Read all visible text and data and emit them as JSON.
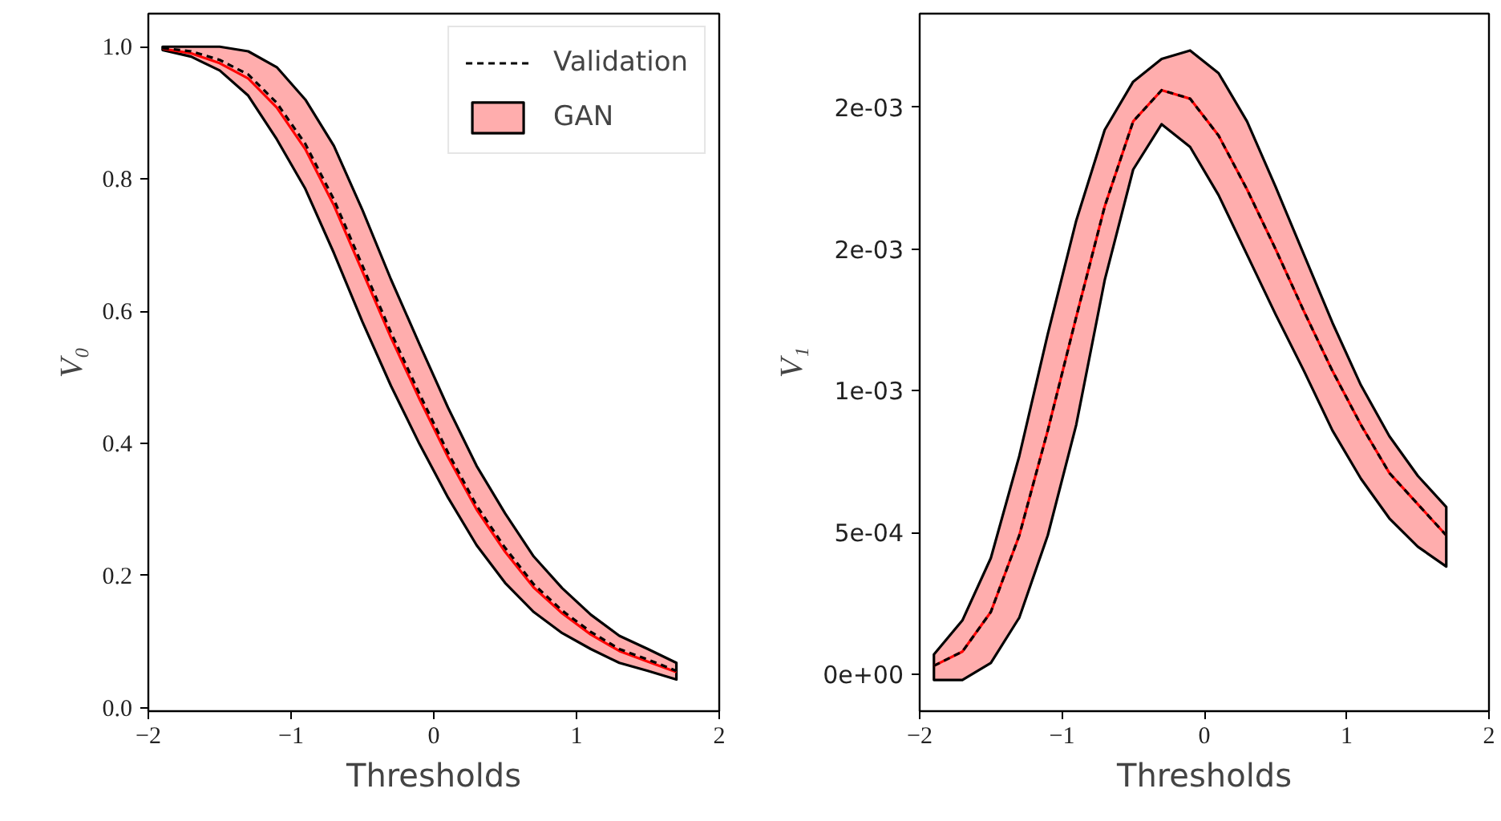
{
  "chart_data": [
    {
      "type": "line",
      "xlabel": "Thresholds",
      "ylabel": "V₀",
      "xlim": [
        -2,
        2
      ],
      "ylim": [
        -0.005,
        1.05
      ],
      "xticks": [
        -2,
        -1,
        0,
        1,
        2
      ],
      "yticks": [
        {
          "value": 0,
          "label": "0.0"
        },
        0.2,
        0.4,
        0.6,
        0.8,
        {
          "value": 1,
          "label": "1.0"
        }
      ],
      "grid": false,
      "legend": "top right",
      "x": [
        -1.9,
        -1.7,
        -1.5,
        -1.3,
        -1.1,
        -0.9,
        -0.7,
        -0.5,
        -0.3,
        -0.1,
        0.1,
        0.3,
        0.5,
        0.7,
        0.9,
        1.1,
        1.3,
        1.5,
        1.7
      ],
      "series": [
        {
          "name": "Validation",
          "color": "#000000",
          "line_style": "dashed",
          "values": [
            0.998,
            0.993,
            0.98,
            0.958,
            0.915,
            0.853,
            0.769,
            0.669,
            0.568,
            0.475,
            0.386,
            0.306,
            0.242,
            0.187,
            0.147,
            0.115,
            0.089,
            0.073,
            0.056
          ]
        },
        {
          "name": "GAN",
          "color": "#ff0000",
          "line_style": "solid",
          "values": [
            0.997,
            0.99,
            0.975,
            0.952,
            0.908,
            0.845,
            0.76,
            0.66,
            0.56,
            0.467,
            0.379,
            0.3,
            0.236,
            0.182,
            0.143,
            0.111,
            0.086,
            0.07,
            0.054
          ],
          "lower": [
            0.995,
            0.985,
            0.964,
            0.926,
            0.86,
            0.785,
            0.688,
            0.584,
            0.487,
            0.399,
            0.318,
            0.246,
            0.189,
            0.145,
            0.113,
            0.089,
            0.068,
            0.056,
            0.043
          ],
          "upper": [
            1.0,
            1.0,
            1.0,
            0.993,
            0.969,
            0.92,
            0.85,
            0.753,
            0.648,
            0.55,
            0.454,
            0.366,
            0.294,
            0.229,
            0.181,
            0.141,
            0.109,
            0.089,
            0.068
          ]
        }
      ]
    },
    {
      "type": "line",
      "xlabel": "Thresholds",
      "ylabel": "V₁",
      "xlim": [
        -2,
        2
      ],
      "ylim": [
        -0.00013,
        0.00233
      ],
      "xticks": [
        -2,
        -1,
        0,
        1,
        2
      ],
      "yticks": [
        {
          "value": 0,
          "label": "0e+00"
        },
        {
          "value": 0.0005,
          "label": "5e-04"
        },
        {
          "value": 0.001,
          "label": "1e-03"
        },
        {
          "value": 0.0015,
          "label": "2e-03"
        },
        {
          "value": 0.002,
          "label": "2e-03"
        }
      ],
      "grid": false,
      "legend": false,
      "x": [
        -1.9,
        -1.7,
        -1.5,
        -1.3,
        -1.1,
        -0.9,
        -0.7,
        -0.5,
        -0.3,
        -0.1,
        0.1,
        0.3,
        0.5,
        0.7,
        0.9,
        1.1,
        1.3,
        1.5,
        1.7
      ],
      "series": [
        {
          "color": "#000000",
          "line_style": "dashed",
          "values": [
            3e-05,
            8e-05,
            0.00022,
            0.00049,
            0.00086,
            0.00126,
            0.00165,
            0.00195,
            0.00206,
            0.00203,
            0.0019,
            0.00171,
            0.0015,
            0.00128,
            0.00107,
            0.00088,
            0.00071,
            0.0006,
            0.00049
          ]
        },
        {
          "color": "#ff0000",
          "line_style": "solid",
          "values": [
            3e-05,
            8e-05,
            0.00022,
            0.00049,
            0.00086,
            0.00126,
            0.00165,
            0.00195,
            0.00206,
            0.00203,
            0.0019,
            0.00171,
            0.0015,
            0.00128,
            0.00107,
            0.00088,
            0.00071,
            0.0006,
            0.00049
          ],
          "lower": [
            -2e-05,
            -2e-05,
            4e-05,
            0.0002,
            0.00049,
            0.00088,
            0.00139,
            0.00178,
            0.00194,
            0.00186,
            0.00169,
            0.00148,
            0.00127,
            0.00107,
            0.00086,
            0.00069,
            0.00055,
            0.00045,
            0.00038
          ],
          "upper": [
            7e-05,
            0.00019,
            0.00041,
            0.00077,
            0.0012,
            0.0016,
            0.00192,
            0.00209,
            0.00217,
            0.0022,
            0.00212,
            0.00195,
            0.00172,
            0.00148,
            0.00124,
            0.00102,
            0.00084,
            0.0007,
            0.00059
          ]
        }
      ]
    }
  ]
}
